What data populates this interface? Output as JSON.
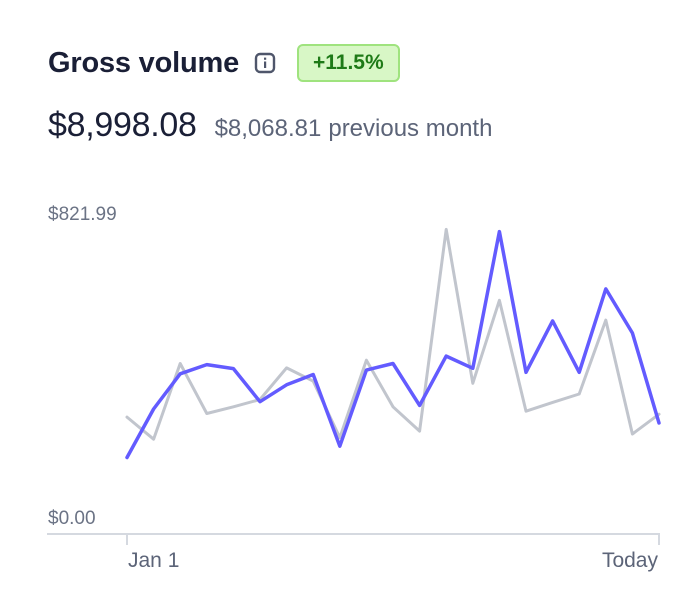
{
  "header": {
    "title": "Gross volume",
    "info_icon": "info-icon",
    "change_badge": "+11.5%",
    "badge_color": "#d8f7c6",
    "badge_text_color": "#1e7a17"
  },
  "totals": {
    "current": "$8,998.08",
    "previous_value": "$8,068.81",
    "previous_label": "previous month"
  },
  "chart_data": {
    "type": "line",
    "y_ticks": [
      "$821.99",
      "$0.00"
    ],
    "ylim": [
      0,
      821.99
    ],
    "x_ticks": [
      "Jan 1",
      "Today"
    ],
    "grid": false,
    "series": [
      {
        "key": "current",
        "color": "#635bff",
        "values": [
          170,
          302,
          398,
          423,
          412,
          322,
          368,
          396,
          201,
          408,
          426,
          312,
          446,
          413,
          785,
          402,
          542,
          402,
          629,
          509,
          264
        ]
      },
      {
        "key": "previous",
        "color": "#c1c5cd",
        "values": [
          280,
          220,
          426,
          290,
          308,
          328,
          414,
          378,
          224,
          435,
          308,
          242,
          791,
          372,
          598,
          296,
          320,
          343,
          544,
          234,
          288
        ]
      }
    ]
  }
}
